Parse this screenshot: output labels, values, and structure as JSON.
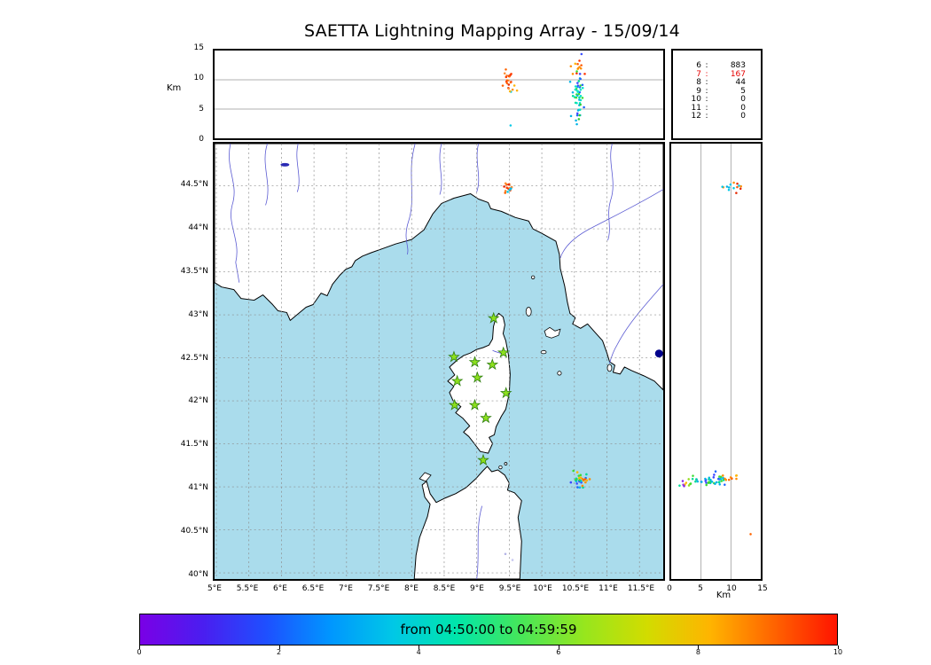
{
  "title": "SAETTA Lightning Mapping Array - 15/09/14",
  "top_panel": {
    "ylabel": "Km",
    "yticks": [
      {
        "label": "15",
        "value": 15
      },
      {
        "label": "10",
        "value": 10
      },
      {
        "label": "5",
        "value": 5
      },
      {
        "label": "0",
        "value": 0
      }
    ],
    "grid_values": [
      5,
      10
    ]
  },
  "stats": {
    "highlight_color": "#e60000",
    "rows": [
      {
        "level": "6",
        "count": "883",
        "highlight": false
      },
      {
        "level": "7",
        "count": "167",
        "highlight": true
      },
      {
        "level": "8",
        "count": "44",
        "highlight": false
      },
      {
        "level": "9",
        "count": "5",
        "highlight": false
      },
      {
        "level": "10",
        "count": "0",
        "highlight": false
      },
      {
        "level": "11",
        "count": "0",
        "highlight": false
      },
      {
        "level": "12",
        "count": "0",
        "highlight": false
      }
    ]
  },
  "map": {
    "sea_color": "#aadcec",
    "land_color": "#ffffff",
    "river_color": "#5a5ad2",
    "grid_color": "#8c8c8c",
    "station_color": "#8de01e",
    "station_edge_color": "#2e7d0f",
    "lat_ticks": [
      {
        "label": "44.5°N",
        "value": 44.5
      },
      {
        "label": "44°N",
        "value": 44
      },
      {
        "label": "43.5°N",
        "value": 43.5
      },
      {
        "label": "43°N",
        "value": 43
      },
      {
        "label": "42.5°N",
        "value": 42.5
      },
      {
        "label": "42°N",
        "value": 42
      },
      {
        "label": "41.5°N",
        "value": 41.5
      },
      {
        "label": "41°N",
        "value": 41
      },
      {
        "label": "40.5°N",
        "value": 40.5
      },
      {
        "label": "40°N",
        "value": 40
      }
    ],
    "lon_ticks": [
      {
        "label": "5°E",
        "value": 5
      },
      {
        "label": "5.5°E",
        "value": 5.5
      },
      {
        "label": "6°E",
        "value": 6
      },
      {
        "label": "6.5°E",
        "value": 6.5
      },
      {
        "label": "7°E",
        "value": 7
      },
      {
        "label": "7.5°E",
        "value": 7.5
      },
      {
        "label": "8°E",
        "value": 8
      },
      {
        "label": "8.5°E",
        "value": 8.5
      },
      {
        "label": "9°E",
        "value": 9
      },
      {
        "label": "9.5°E",
        "value": 9.5
      },
      {
        "label": "10°E",
        "value": 10
      },
      {
        "label": "10.5°E",
        "value": 10.5
      },
      {
        "label": "11°E",
        "value": 11
      },
      {
        "label": "11.5°E",
        "value": 11.5
      }
    ]
  },
  "right_panel": {
    "xlabel": "Km",
    "xticks": [
      {
        "label": "0",
        "value": 0
      },
      {
        "label": "5",
        "value": 5
      },
      {
        "label": "10",
        "value": 10
      },
      {
        "label": "15",
        "value": 15
      }
    ],
    "grid_values": [
      5,
      10
    ]
  },
  "colorbar": {
    "label": "from 04:50:00 to 04:59:59",
    "ticks": [
      "0",
      "2",
      "4",
      "6",
      "8",
      "10"
    ],
    "gradient": [
      "#7a00e6",
      "#4a1ef0",
      "#1e50ff",
      "#0096ff",
      "#00c8e6",
      "#00e6aa",
      "#46e65a",
      "#96e61e",
      "#d2dc00",
      "#ffb400",
      "#ff6400",
      "#ff1400"
    ]
  },
  "chart_data": [
    {
      "panel": "top",
      "type": "scatter",
      "name": "altitude-vs-longitude",
      "xlim": [
        5,
        11.9
      ],
      "ylim": [
        0,
        15
      ],
      "clusters": [
        {
          "cx": 9.5,
          "cy": 10.6,
          "sx": 0.045,
          "sy": 0.9,
          "n": 18,
          "colors": [
            "#ff3c00",
            "#ff6400",
            "#e62800",
            "#ff8c32"
          ]
        },
        {
          "cx": 9.54,
          "cy": 8.2,
          "sx": 0.05,
          "sy": 0.6,
          "n": 5,
          "colors": [
            "#ff8c00",
            "#00c8e6",
            "#ffb400"
          ]
        },
        {
          "cx": 10.55,
          "cy": 11.6,
          "sx": 0.05,
          "sy": 0.7,
          "n": 12,
          "colors": [
            "#ff8c00",
            "#ff5a00",
            "#ffb400",
            "#ff3200"
          ]
        },
        {
          "cx": 10.56,
          "cy": 7.4,
          "sx": 0.04,
          "sy": 1.3,
          "n": 42,
          "colors": [
            "#1e64ff",
            "#00b4e6",
            "#00dc96",
            "#3cdc32",
            "#3c46ff",
            "#00e6c8"
          ]
        },
        {
          "cx": 10.58,
          "cy": 3.8,
          "sx": 0.05,
          "sy": 1.0,
          "n": 10,
          "colors": [
            "#1e64ff",
            "#2ecd32",
            "#00b4e6"
          ]
        }
      ],
      "points": [
        {
          "x": 10.61,
          "y": 14.4,
          "c": "#3c50ff"
        },
        {
          "x": 9.52,
          "y": 2.2,
          "c": "#00c8e6"
        },
        {
          "x": 9.4,
          "y": 9.0,
          "c": "#ff6400"
        }
      ]
    },
    {
      "panel": "map",
      "type": "map-scatter",
      "name": "plan-view",
      "lon_range": [
        5,
        11.9
      ],
      "lat_range": [
        39.93,
        44.99
      ],
      "stations": [
        [
          9.26,
          42.96
        ],
        [
          8.65,
          42.51
        ],
        [
          8.97,
          42.45
        ],
        [
          9.24,
          42.42
        ],
        [
          9.41,
          42.56
        ],
        [
          8.7,
          42.23
        ],
        [
          9.01,
          42.27
        ],
        [
          9.45,
          42.09
        ],
        [
          8.66,
          41.95
        ],
        [
          8.97,
          41.95
        ],
        [
          9.14,
          41.8
        ],
        [
          9.1,
          41.31
        ]
      ],
      "clusters": [
        {
          "cx": 9.48,
          "cy": 44.47,
          "sx": 0.05,
          "sy": 0.035,
          "n": 13,
          "colors": [
            "#ff3c00",
            "#ff6400",
            "#ff8c32",
            "#e62800"
          ]
        },
        {
          "cx": 9.5,
          "cy": 44.44,
          "sx": 0.03,
          "sy": 0.02,
          "n": 3,
          "colors": [
            "#00c8e6",
            "#00b4e6"
          ]
        },
        {
          "cx": 10.56,
          "cy": 41.08,
          "sx": 0.06,
          "sy": 0.04,
          "n": 26,
          "colors": [
            "#1e64ff",
            "#00b4e6",
            "#00dc96",
            "#3cdc32",
            "#ffb400",
            "#3c46ff"
          ]
        },
        {
          "cx": 10.68,
          "cy": 41.06,
          "sx": 0.035,
          "sy": 0.025,
          "n": 7,
          "colors": [
            "#ff8c00",
            "#ffb400",
            "#ff6400"
          ]
        }
      ],
      "points": [
        {
          "x": 11.8,
          "y": 42.55,
          "c": "#00008b",
          "r": 4.5
        },
        {
          "x": 9.44,
          "y": 40.22,
          "c": "#b4b4e6"
        },
        {
          "x": 9.55,
          "y": 40.15,
          "c": "#c8c8f0"
        }
      ]
    },
    {
      "panel": "right",
      "type": "scatter",
      "name": "altitude-vs-latitude",
      "xlim": [
        0,
        15
      ],
      "ylim": [
        39.93,
        44.99
      ],
      "clusters": [
        {
          "cx": 10.4,
          "cy": 44.47,
          "sx": 0.9,
          "sy": 0.03,
          "n": 14,
          "colors": [
            "#ff5a00",
            "#00c8e6",
            "#ff8c00",
            "#e62800",
            "#00b4e6"
          ]
        },
        {
          "cx": 6.6,
          "cy": 41.08,
          "sx": 1.3,
          "sy": 0.035,
          "n": 40,
          "colors": [
            "#1e64ff",
            "#00b4e6",
            "#00dc96",
            "#3cdc32",
            "#3c46ff"
          ]
        },
        {
          "cx": 3.0,
          "cy": 41.06,
          "sx": 0.8,
          "sy": 0.03,
          "n": 10,
          "colors": [
            "#3cdc32",
            "#96dc1e",
            "#00dc96",
            "#ffb400"
          ]
        },
        {
          "cx": 10.2,
          "cy": 41.09,
          "sx": 0.8,
          "sy": 0.03,
          "n": 9,
          "colors": [
            "#ff8c00",
            "#ffb400",
            "#ff6400"
          ]
        },
        {
          "cx": 1.8,
          "cy": 41.05,
          "sx": 0.4,
          "sy": 0.02,
          "n": 3,
          "colors": [
            "#8228e6",
            "#a03ce6"
          ]
        }
      ],
      "points": [
        {
          "x": 13.3,
          "y": 40.45,
          "c": "#ff6400"
        }
      ]
    }
  ]
}
